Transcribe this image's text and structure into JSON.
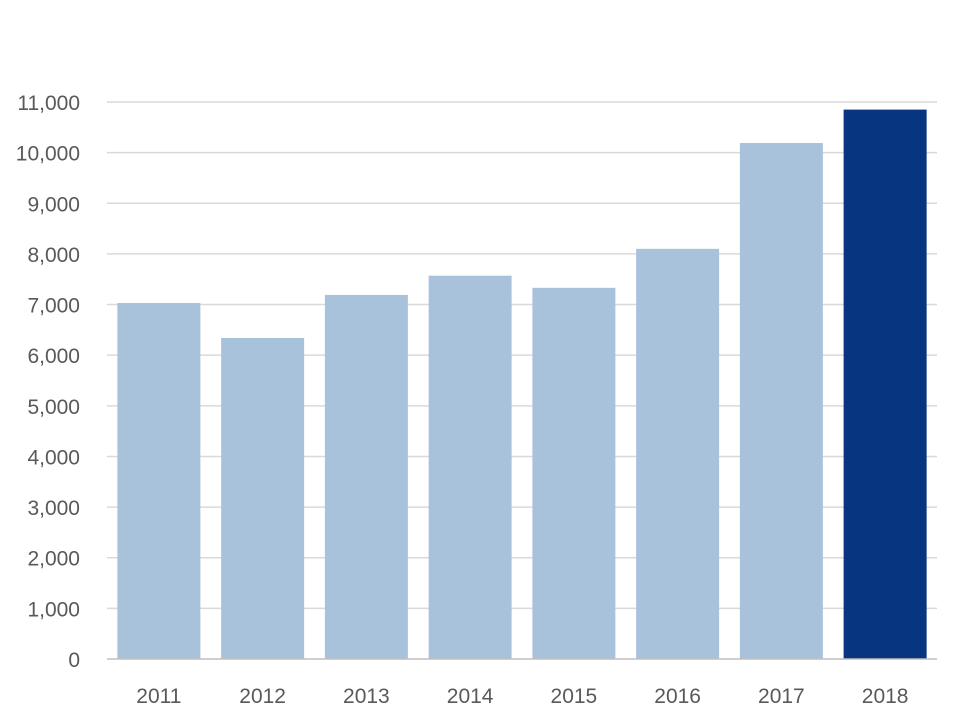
{
  "chart_data": {
    "type": "bar",
    "categories": [
      "2011",
      "2012",
      "2013",
      "2014",
      "2015",
      "2016",
      "2017",
      "2018"
    ],
    "values": [
      7030,
      6340,
      7190,
      7570,
      7330,
      8100,
      10190,
      10850
    ],
    "ylim": [
      0,
      11000
    ],
    "yticks": [
      0,
      1000,
      2000,
      3000,
      4000,
      5000,
      6000,
      7000,
      8000,
      9000,
      10000,
      11000
    ],
    "ytick_labels": [
      "0",
      "1,000",
      "2,000",
      "3,000",
      "4,000",
      "5,000",
      "6,000",
      "7,000",
      "8,000",
      "9,000",
      "10,000",
      "11,000"
    ],
    "grid": true,
    "legend": "none",
    "colors": {
      "bar": "#a9c2dc",
      "highlight": "#08357f",
      "highlight_category": "2018"
    }
  }
}
